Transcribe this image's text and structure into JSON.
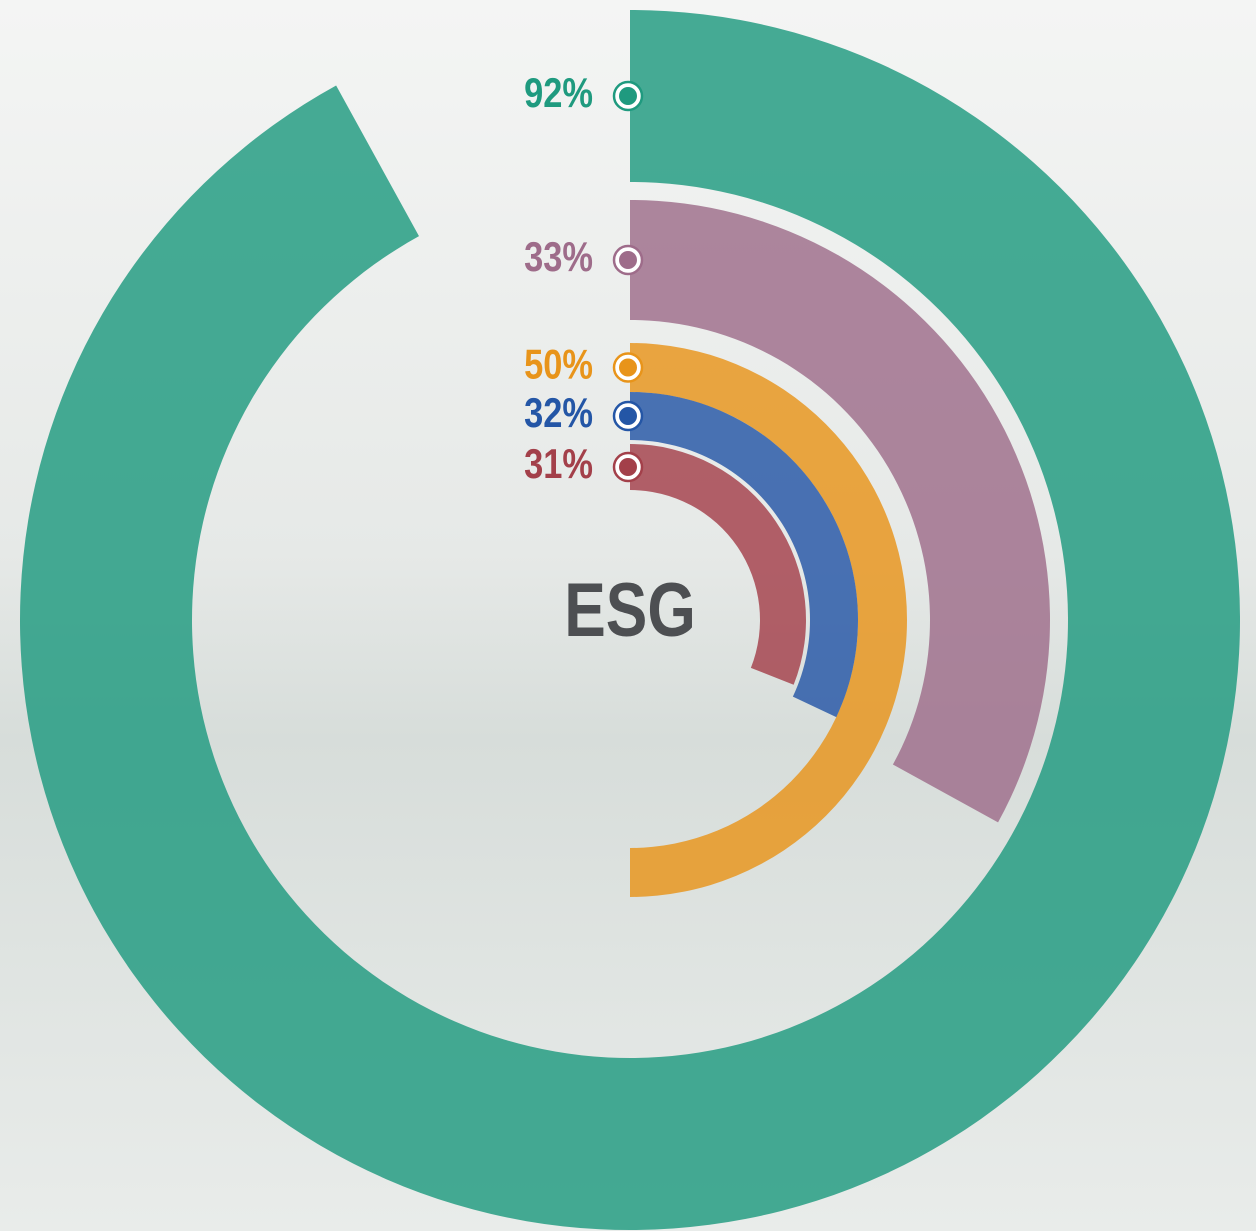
{
  "chart_data": {
    "type": "radial_bar",
    "center_label": "ESG",
    "values": [
      92,
      33,
      50,
      32,
      31
    ],
    "value_labels": [
      "92%",
      "33%",
      "50%",
      "32%",
      "31%"
    ],
    "colors": [
      "#1f9a7f",
      "#9e6c8a",
      "#e8941a",
      "#2456a6",
      "#a3404a"
    ],
    "ylim": [
      0,
      100
    ]
  }
}
